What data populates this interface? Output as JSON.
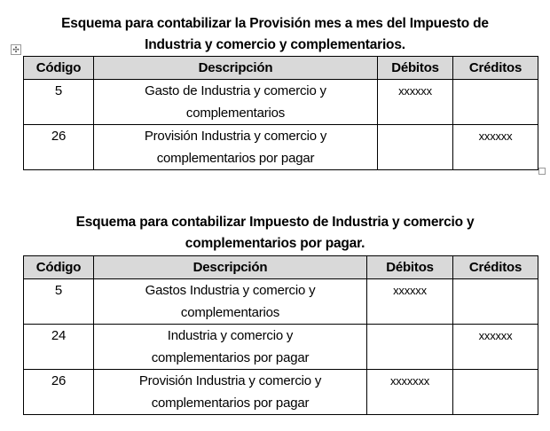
{
  "table1": {
    "title_line1": "Esquema para contabilizar la Provisión mes a mes del Impuesto de",
    "title_line2": "Industria y comercio y complementarios.",
    "headers": [
      "Código",
      "Descripción",
      "Débitos",
      "Créditos"
    ],
    "rows": [
      {
        "code": "5",
        "desc1": "Gasto de Industria y comercio y",
        "desc2": "complementarios",
        "debit": "xxxxxx",
        "credit": ""
      },
      {
        "code": "26",
        "desc1": "Provisión Industria y comercio y",
        "desc2": "complementarios por pagar",
        "debit": "",
        "credit": "xxxxxx"
      }
    ]
  },
  "table2": {
    "title_line1": "Esquema para contabilizar Impuesto de Industria y comercio y",
    "title_line2": "complementarios por pagar.",
    "headers": [
      "Código",
      "Descripción",
      "Débitos",
      "Créditos"
    ],
    "rows": [
      {
        "code": "5",
        "desc1": "Gastos Industria y comercio y",
        "desc2": "complementarios",
        "debit": "xxxxxx",
        "credit": ""
      },
      {
        "code": "24",
        "desc1": "Industria y comercio y",
        "desc2": "complementarios por pagar",
        "debit": "",
        "credit": "xxxxxx"
      },
      {
        "code": "26",
        "desc1": "Provisión Industria y comercio y",
        "desc2": "complementarios por pagar",
        "debit": "xxxxxxx",
        "credit": ""
      }
    ]
  },
  "icons": {
    "move_handle": "move-icon",
    "resize_handle": "resize-icon"
  }
}
